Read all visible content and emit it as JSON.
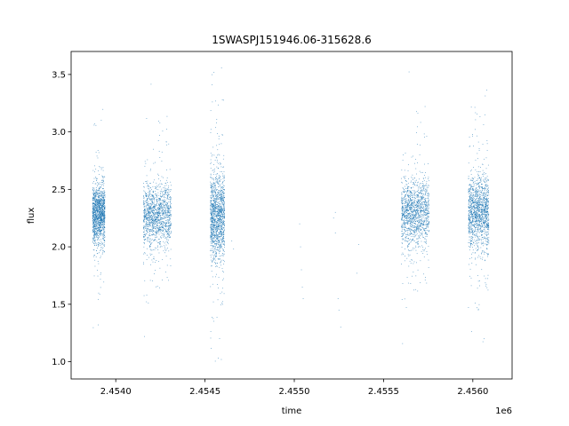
{
  "chart_data": {
    "type": "scatter",
    "title": "1SWASPJ151946.06-315628.6",
    "xlabel": "time",
    "ylabel": "flux",
    "x_offset_label": "1e6",
    "xlim": [
      2453750,
      2456220
    ],
    "ylim": [
      0.85,
      3.7
    ],
    "x_ticks": [
      2454000,
      2454500,
      2455000,
      2455500,
      2456000
    ],
    "x_tick_labels": [
      "2.4540",
      "2.4545",
      "2.4550",
      "2.4555",
      "2.4560"
    ],
    "y_ticks": [
      1.0,
      1.5,
      2.0,
      2.5,
      3.0,
      3.5
    ],
    "y_tick_labels": [
      "1.0",
      "1.5",
      "2.0",
      "2.5",
      "3.0",
      "3.5"
    ],
    "grid": false,
    "legend": "none",
    "point_color": "#1f77b4",
    "clusters": [
      {
        "x_start": 2453870,
        "x_end": 2453940,
        "y_center": 2.28,
        "y_spread": 0.12,
        "y_min": 1.0,
        "y_max": 3.45
      },
      {
        "x_start": 2454155,
        "x_end": 2454310,
        "y_center": 2.28,
        "y_spread": 0.13,
        "y_min": 1.0,
        "y_max": 3.55
      },
      {
        "x_start": 2454530,
        "x_end": 2454610,
        "y_center": 2.25,
        "y_spread": 0.18,
        "y_min": 1.0,
        "y_max": 3.57
      },
      {
        "x_start": 2455600,
        "x_end": 2455755,
        "y_center": 2.3,
        "y_spread": 0.14,
        "y_min": 1.0,
        "y_max": 3.53
      },
      {
        "x_start": 2455975,
        "x_end": 2456090,
        "y_center": 2.3,
        "y_spread": 0.15,
        "y_min": 1.0,
        "y_max": 3.55
      }
    ],
    "sparse_points": [
      {
        "x": 2454650,
        "y": 2.05
      },
      {
        "x": 2454660,
        "y": 1.98
      },
      {
        "x": 2455030,
        "y": 2.2
      },
      {
        "x": 2455035,
        "y": 2.0
      },
      {
        "x": 2455040,
        "y": 1.8
      },
      {
        "x": 2455045,
        "y": 1.65
      },
      {
        "x": 2455050,
        "y": 1.55
      },
      {
        "x": 2455220,
        "y": 2.25
      },
      {
        "x": 2455230,
        "y": 2.3
      },
      {
        "x": 2455245,
        "y": 1.55
      },
      {
        "x": 2455250,
        "y": 1.45
      },
      {
        "x": 2455260,
        "y": 1.3
      },
      {
        "x": 2455350,
        "y": 1.77
      },
      {
        "x": 2455360,
        "y": 2.02
      },
      {
        "x": 2455230,
        "y": 2.12
      }
    ]
  }
}
